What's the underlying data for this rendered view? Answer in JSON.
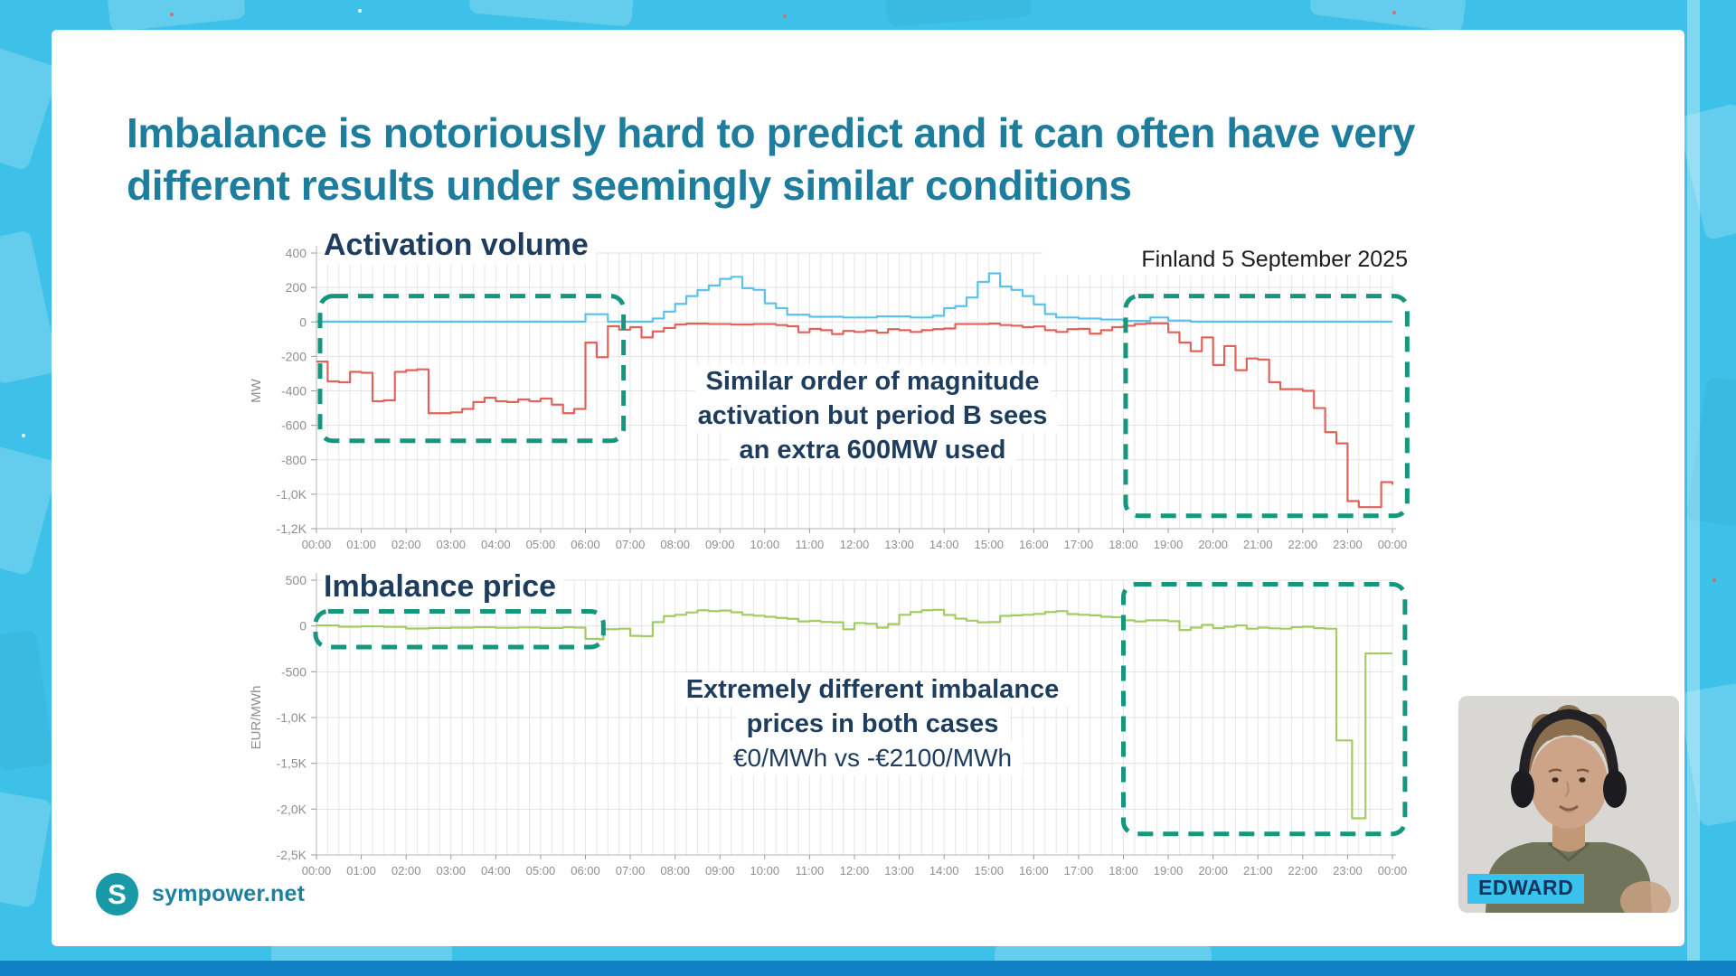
{
  "slide": {
    "title_line1": "Imbalance is notoriously hard to predict and it can often have very",
    "title_line2": "different results under seemingly similar conditions",
    "date_label": "Finland 5 September 2025",
    "logo_initial": "S",
    "logo_text": "sympower.net",
    "webcam_name": "EDWARD"
  },
  "annotations": {
    "activation": [
      "Similar order of magnitude",
      "activation but period B sees",
      "an extra 600MW used"
    ],
    "price": [
      "Extremely different imbalance",
      "prices in both cases",
      "€0/MWh vs -€2100/MWh"
    ]
  },
  "colors": {
    "page_cyan": "#3ec1e9",
    "title_teal": "#1e7d9c",
    "heading_navy": "#1d3c5e",
    "highlight_dash": "#17967e",
    "up_blue": "#5bc0eb",
    "down_red": "#e2625a",
    "price_green": "#a2cc63",
    "name_tag_cyan": "#3ac2ee",
    "logo_teal": "#1899a5"
  },
  "chart_data": [
    {
      "type": "line",
      "name": "activation-volume",
      "title": "Activation volume",
      "xlabel": "",
      "ylabel": "MW",
      "xlim": [
        0,
        24
      ],
      "ylim": [
        -1200,
        400
      ],
      "grid": true,
      "yticks": [
        {
          "v": 400,
          "label": "400"
        },
        {
          "v": 200,
          "label": "200"
        },
        {
          "v": 0,
          "label": "0"
        },
        {
          "v": -200,
          "label": "-200"
        },
        {
          "v": -400,
          "label": "-400"
        },
        {
          "v": -600,
          "label": "-600"
        },
        {
          "v": -800,
          "label": "-800"
        },
        {
          "v": -1000,
          "label": "-1,0K"
        },
        {
          "v": -1200,
          "label": "-1,2K"
        }
      ],
      "xticks": [
        "00:00",
        "01:00",
        "02:00",
        "03:00",
        "04:00",
        "05:00",
        "06:00",
        "07:00",
        "08:00",
        "09:00",
        "10:00",
        "11:00",
        "12:00",
        "13:00",
        "14:00",
        "15:00",
        "16:00",
        "17:00",
        "18:00",
        "19:00",
        "20:00",
        "21:00",
        "22:00",
        "23:00",
        "00:00"
      ],
      "series": [
        {
          "name": "up-activation",
          "color": "#5bc0eb",
          "points": [
            [
              0,
              2
            ],
            [
              5.9,
              2
            ],
            [
              6,
              45
            ],
            [
              6.4,
              45
            ],
            [
              6.5,
              2
            ],
            [
              7.25,
              2
            ],
            [
              7.5,
              20
            ],
            [
              7.75,
              60
            ],
            [
              8,
              105
            ],
            [
              8.25,
              150
            ],
            [
              8.5,
              185
            ],
            [
              8.75,
              212
            ],
            [
              9,
              250
            ],
            [
              9.25,
              262
            ],
            [
              9.5,
              196
            ],
            [
              9.75,
              186
            ],
            [
              10,
              108
            ],
            [
              10.25,
              80
            ],
            [
              10.5,
              42
            ],
            [
              11,
              30
            ],
            [
              11.75,
              26
            ],
            [
              12.5,
              32
            ],
            [
              13.25,
              26
            ],
            [
              13.75,
              36
            ],
            [
              14,
              80
            ],
            [
              14.25,
              92
            ],
            [
              14.5,
              142
            ],
            [
              14.75,
              232
            ],
            [
              15,
              282
            ],
            [
              15.25,
              206
            ],
            [
              15.5,
              186
            ],
            [
              15.75,
              150
            ],
            [
              16,
              102
            ],
            [
              16.25,
              46
            ],
            [
              16.5,
              26
            ],
            [
              17,
              20
            ],
            [
              17.5,
              14
            ],
            [
              18,
              6
            ],
            [
              18.5,
              6
            ],
            [
              18.6,
              26
            ],
            [
              18.9,
              26
            ],
            [
              19,
              8
            ],
            [
              19.5,
              2
            ],
            [
              24,
              2
            ]
          ]
        },
        {
          "name": "down-activation",
          "color": "#e2625a",
          "points": [
            [
              0,
              -230
            ],
            [
              0.25,
              -345
            ],
            [
              0.5,
              -350
            ],
            [
              0.75,
              -290
            ],
            [
              1,
              -295
            ],
            [
              1.25,
              -460
            ],
            [
              1.5,
              -455
            ],
            [
              1.75,
              -290
            ],
            [
              2,
              -280
            ],
            [
              2.25,
              -275
            ],
            [
              2.5,
              -530
            ],
            [
              3,
              -525
            ],
            [
              3.25,
              -505
            ],
            [
              3.5,
              -465
            ],
            [
              3.75,
              -440
            ],
            [
              4,
              -460
            ],
            [
              4.25,
              -465
            ],
            [
              4.5,
              -450
            ],
            [
              4.75,
              -460
            ],
            [
              5,
              -445
            ],
            [
              5.25,
              -480
            ],
            [
              5.5,
              -530
            ],
            [
              5.75,
              -505
            ],
            [
              6,
              -120
            ],
            [
              6.25,
              -205
            ],
            [
              6.5,
              -25
            ],
            [
              6.75,
              -45
            ],
            [
              7,
              -30
            ],
            [
              7.25,
              -90
            ],
            [
              7.5,
              -55
            ],
            [
              7.75,
              -35
            ],
            [
              8,
              -15
            ],
            [
              8.25,
              -10
            ],
            [
              8.75,
              -12
            ],
            [
              9.25,
              -15
            ],
            [
              9.75,
              -12
            ],
            [
              10.25,
              -18
            ],
            [
              10.5,
              -25
            ],
            [
              10.75,
              -60
            ],
            [
              11,
              -40
            ],
            [
              11.25,
              -48
            ],
            [
              11.5,
              -70
            ],
            [
              11.75,
              -52
            ],
            [
              12,
              -58
            ],
            [
              12.25,
              -50
            ],
            [
              12.5,
              -62
            ],
            [
              12.75,
              -42
            ],
            [
              13,
              -48
            ],
            [
              13.25,
              -58
            ],
            [
              13.5,
              -48
            ],
            [
              13.75,
              -42
            ],
            [
              14,
              -38
            ],
            [
              14.25,
              -12
            ],
            [
              15,
              -10
            ],
            [
              15.25,
              -18
            ],
            [
              15.5,
              -22
            ],
            [
              15.75,
              -30
            ],
            [
              16,
              -26
            ],
            [
              16.25,
              -48
            ],
            [
              16.5,
              -58
            ],
            [
              16.75,
              -42
            ],
            [
              17,
              -40
            ],
            [
              17.25,
              -68
            ],
            [
              17.5,
              -48
            ],
            [
              17.75,
              -30
            ],
            [
              18,
              -22
            ],
            [
              18.25,
              -12
            ],
            [
              18.5,
              -8
            ],
            [
              19,
              -60
            ],
            [
              19.25,
              -120
            ],
            [
              19.5,
              -170
            ],
            [
              19.75,
              -90
            ],
            [
              20,
              -250
            ],
            [
              20.25,
              -140
            ],
            [
              20.5,
              -280
            ],
            [
              20.75,
              -212
            ],
            [
              21,
              -218
            ],
            [
              21.25,
              -350
            ],
            [
              21.5,
              -390
            ],
            [
              22,
              -400
            ],
            [
              22.25,
              -500
            ],
            [
              22.5,
              -640
            ],
            [
              22.75,
              -705
            ],
            [
              23,
              -1040
            ],
            [
              23.25,
              -1075
            ],
            [
              23.5,
              -1075
            ],
            [
              23.75,
              -930
            ],
            [
              24,
              -945
            ]
          ]
        }
      ],
      "highlight_boxes": [
        {
          "t0": 0.08,
          "t1": 6.85,
          "v0": 150,
          "v1": -690
        },
        {
          "t0": 18.05,
          "t1": 24.33,
          "v0": 150,
          "v1": -1125
        }
      ]
    },
    {
      "type": "line",
      "name": "imbalance-price",
      "title": "Imbalance price",
      "xlabel": "",
      "ylabel": "EUR/MWh",
      "xlim": [
        0,
        24
      ],
      "ylim": [
        -2500,
        500
      ],
      "grid": true,
      "yticks": [
        {
          "v": 500,
          "label": "500"
        },
        {
          "v": 0,
          "label": "0"
        },
        {
          "v": -500,
          "label": "-500"
        },
        {
          "v": -1000,
          "label": "-1,0K"
        },
        {
          "v": -1500,
          "label": "-1,5K"
        },
        {
          "v": -2000,
          "label": "-2,0K"
        },
        {
          "v": -2500,
          "label": "-2,5K"
        }
      ],
      "xticks": [
        "00:00",
        "01:00",
        "02:00",
        "03:00",
        "04:00",
        "05:00",
        "06:00",
        "07:00",
        "08:00",
        "09:00",
        "10:00",
        "11:00",
        "12:00",
        "13:00",
        "14:00",
        "15:00",
        "16:00",
        "17:00",
        "18:00",
        "19:00",
        "20:00",
        "21:00",
        "22:00",
        "23:00",
        "00:00"
      ],
      "series": [
        {
          "name": "imbalance-price",
          "color": "#a2cc63",
          "points": [
            [
              0,
              5
            ],
            [
              0.5,
              -8
            ],
            [
              1,
              -4
            ],
            [
              1.5,
              -10
            ],
            [
              2,
              -28
            ],
            [
              2.5,
              -22
            ],
            [
              3,
              -18
            ],
            [
              3.5,
              -14
            ],
            [
              4,
              -20
            ],
            [
              4.5,
              -16
            ],
            [
              5,
              -22
            ],
            [
              5.5,
              -14
            ],
            [
              5.75,
              -18
            ],
            [
              6,
              -140
            ],
            [
              6.3,
              -145
            ],
            [
              6.4,
              -35
            ],
            [
              6.75,
              -30
            ],
            [
              7,
              -108
            ],
            [
              7.25,
              -112
            ],
            [
              7.5,
              42
            ],
            [
              7.75,
              108
            ],
            [
              8,
              122
            ],
            [
              8.25,
              148
            ],
            [
              8.5,
              172
            ],
            [
              8.75,
              162
            ],
            [
              9,
              168
            ],
            [
              9.25,
              150
            ],
            [
              9.5,
              122
            ],
            [
              9.75,
              112
            ],
            [
              10,
              100
            ],
            [
              10.25,
              88
            ],
            [
              10.5,
              78
            ],
            [
              10.75,
              50
            ],
            [
              11,
              56
            ],
            [
              11.25,
              44
            ],
            [
              11.5,
              40
            ],
            [
              11.75,
              -36
            ],
            [
              12,
              32
            ],
            [
              12.25,
              24
            ],
            [
              12.5,
              -18
            ],
            [
              12.75,
              20
            ],
            [
              13,
              122
            ],
            [
              13.25,
              152
            ],
            [
              13.5,
              172
            ],
            [
              13.75,
              176
            ],
            [
              14,
              120
            ],
            [
              14.25,
              80
            ],
            [
              14.5,
              58
            ],
            [
              14.75,
              40
            ],
            [
              15,
              42
            ],
            [
              15.25,
              110
            ],
            [
              15.5,
              116
            ],
            [
              15.75,
              122
            ],
            [
              16,
              132
            ],
            [
              16.25,
              152
            ],
            [
              16.5,
              162
            ],
            [
              16.75,
              130
            ],
            [
              17,
              122
            ],
            [
              17.25,
              116
            ],
            [
              17.5,
              100
            ],
            [
              17.75,
              96
            ],
            [
              18,
              62
            ],
            [
              18.25,
              50
            ],
            [
              18.5,
              62
            ],
            [
              19,
              52
            ],
            [
              19.25,
              -44
            ],
            [
              19.5,
              -18
            ],
            [
              19.75,
              12
            ],
            [
              20,
              -24
            ],
            [
              20.25,
              -8
            ],
            [
              20.5,
              6
            ],
            [
              20.75,
              -30
            ],
            [
              21,
              -18
            ],
            [
              21.25,
              -26
            ],
            [
              21.5,
              -30
            ],
            [
              21.75,
              -14
            ],
            [
              22,
              -8
            ],
            [
              22.25,
              -24
            ],
            [
              22.5,
              -30
            ],
            [
              22.75,
              -1250
            ],
            [
              23.1,
              -2100
            ],
            [
              23.4,
              -300
            ],
            [
              24,
              -300
            ]
          ]
        }
      ],
      "highlight_boxes": [
        {
          "t0": -0.02,
          "t1": 6.4,
          "v0": 160,
          "v1": -230
        },
        {
          "t0": 18.0,
          "t1": 24.28,
          "v0": 455,
          "v1": -2270
        }
      ]
    }
  ]
}
